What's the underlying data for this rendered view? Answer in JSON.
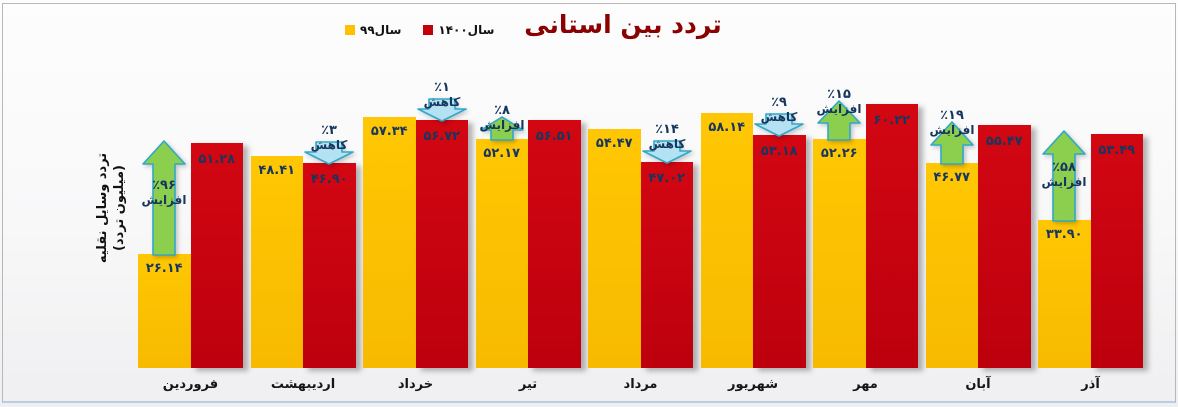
{
  "title": "تردد بین استانی",
  "legend": [
    {
      "label": "سال۹۹",
      "color": "#ffc000"
    },
    {
      "label": "سال۱۴۰۰",
      "color": "#c4000d"
    }
  ],
  "y_axis_title_line1": "تردد وسایل نقلیه",
  "y_axis_title_line2": "(میلیون تردد)",
  "colors": {
    "year99_bar": "#ffc000",
    "year1400_bar": "#c4000d",
    "value_label": "#17365d",
    "title": "#8b0000",
    "arrow_up_fill": "#8cce4e",
    "arrow_down_fill": "#b5e2f2",
    "arrow_stroke": "#2fa8c8"
  },
  "chart_data": {
    "type": "bar",
    "title": "تردد بین استانی",
    "ylabel": "تردد وسایل نقلیه (میلیون تردد)",
    "xlabel": "",
    "ylim": [
      0,
      65
    ],
    "grid": false,
    "legend_position": "top",
    "categories": [
      "فروردین",
      "اردیبهشت",
      "خرداد",
      "تیر",
      "مرداد",
      "شهریور",
      "مهر",
      "آبان",
      "آذر"
    ],
    "series": [
      {
        "name": "سال۹۹",
        "values": [
          26.14,
          48.41,
          57.34,
          52.17,
          54.47,
          58.14,
          52.26,
          46.77,
          33.9
        ],
        "labels": [
          "۲۶.۱۴",
          "۴۸.۴۱",
          "۵۷.۳۴",
          "۵۲.۱۷",
          "۵۴.۴۷",
          "۵۸.۱۴",
          "۵۲.۲۶",
          "۴۶.۷۷",
          "۳۳.۹۰"
        ]
      },
      {
        "name": "سال۱۴۰۰",
        "values": [
          51.28,
          46.9,
          56.72,
          56.51,
          47.02,
          53.18,
          60.22,
          55.47,
          53.49
        ],
        "labels": [
          "۵۱.۲۸",
          "۴۶.۹۰",
          "۵۶.۷۲",
          "۵۶.۵۱",
          "۴۷.۰۲",
          "۵۳.۱۸",
          "۶۰.۲۲",
          "۵۵.۴۷",
          "۵۳.۴۹"
        ]
      }
    ],
    "annotations": [
      {
        "category": "فروردین",
        "direction": "up",
        "pct": "٪۹۶",
        "word": "افزایش"
      },
      {
        "category": "اردیبهشت",
        "direction": "down",
        "pct": "٪۳",
        "word": "کاهش"
      },
      {
        "category": "خرداد",
        "direction": "down",
        "pct": "٪۱",
        "word": "کاهش"
      },
      {
        "category": "تیر",
        "direction": "up",
        "pct": "٪۸",
        "word": "افزایش"
      },
      {
        "category": "مرداد",
        "direction": "down",
        "pct": "٪۱۴",
        "word": "کاهش"
      },
      {
        "category": "شهریور",
        "direction": "down",
        "pct": "٪۹",
        "word": "کاهش"
      },
      {
        "category": "مهر",
        "direction": "up",
        "pct": "٪۱۵",
        "word": "افزایش"
      },
      {
        "category": "آبان",
        "direction": "up",
        "pct": "٪۱۹",
        "word": "افزایش"
      },
      {
        "category": "آذر",
        "direction": "up",
        "pct": "٪۵۸",
        "word": "افزایش"
      }
    ]
  }
}
